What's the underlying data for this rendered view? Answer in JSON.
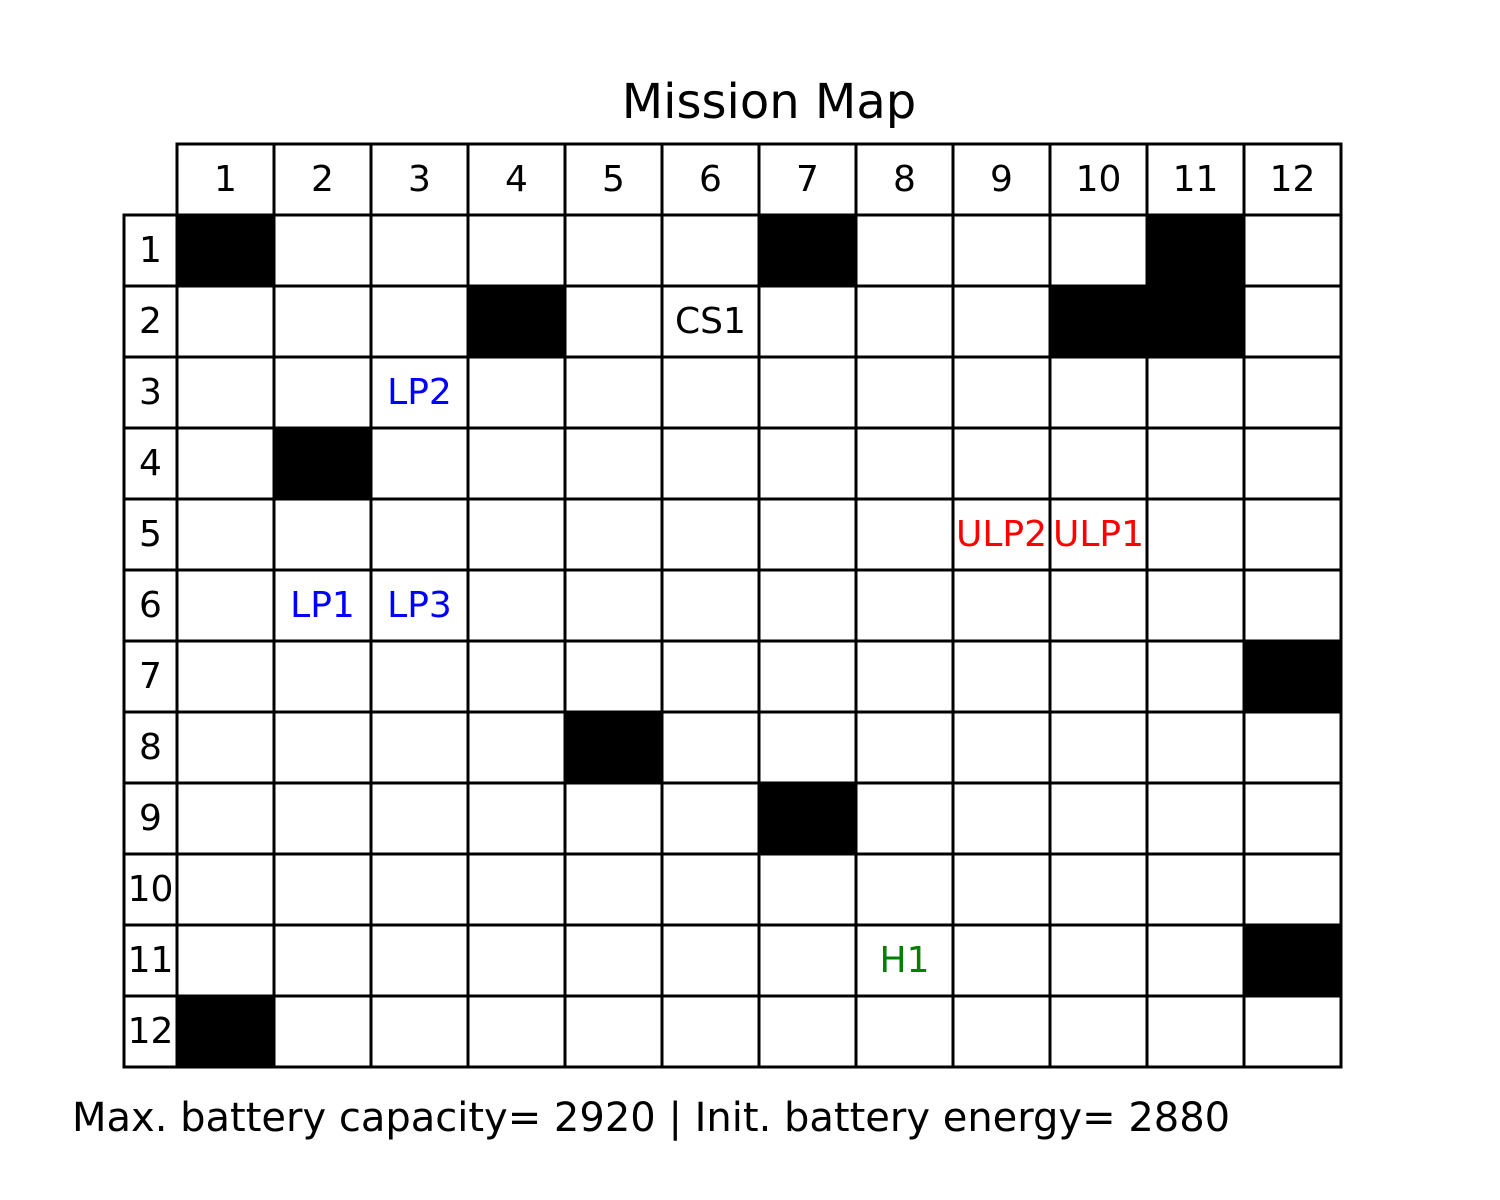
{
  "title": "Mission Map",
  "columns": [
    "1",
    "2",
    "3",
    "4",
    "5",
    "6",
    "7",
    "8",
    "9",
    "10",
    "11",
    "12"
  ],
  "rows": [
    "1",
    "2",
    "3",
    "4",
    "5",
    "6",
    "7",
    "8",
    "9",
    "10",
    "11",
    "12"
  ],
  "obstacles": [
    {
      "row": 1,
      "col": 1
    },
    {
      "row": 1,
      "col": 7
    },
    {
      "row": 1,
      "col": 11
    },
    {
      "row": 2,
      "col": 4
    },
    {
      "row": 2,
      "col": 10
    },
    {
      "row": 2,
      "col": 11
    },
    {
      "row": 4,
      "col": 2
    },
    {
      "row": 7,
      "col": 12
    },
    {
      "row": 8,
      "col": 5
    },
    {
      "row": 9,
      "col": 7
    },
    {
      "row": 11,
      "col": 12
    },
    {
      "row": 12,
      "col": 1
    }
  ],
  "markers": [
    {
      "row": 2,
      "col": 6,
      "label": "CS1",
      "color": "#000000"
    },
    {
      "row": 3,
      "col": 3,
      "label": "LP2",
      "color": "#0000ff"
    },
    {
      "row": 5,
      "col": 9,
      "label": "ULP2",
      "color": "#ff0000"
    },
    {
      "row": 5,
      "col": 10,
      "label": "ULP1",
      "color": "#ff0000"
    },
    {
      "row": 6,
      "col": 2,
      "label": "LP1",
      "color": "#0000ff"
    },
    {
      "row": 6,
      "col": 3,
      "label": "LP3",
      "color": "#0000ff"
    },
    {
      "row": 11,
      "col": 8,
      "label": "H1",
      "color": "#008000"
    }
  ],
  "footer": "Max. battery capacity= 2920 | Init. battery energy= 2880"
}
